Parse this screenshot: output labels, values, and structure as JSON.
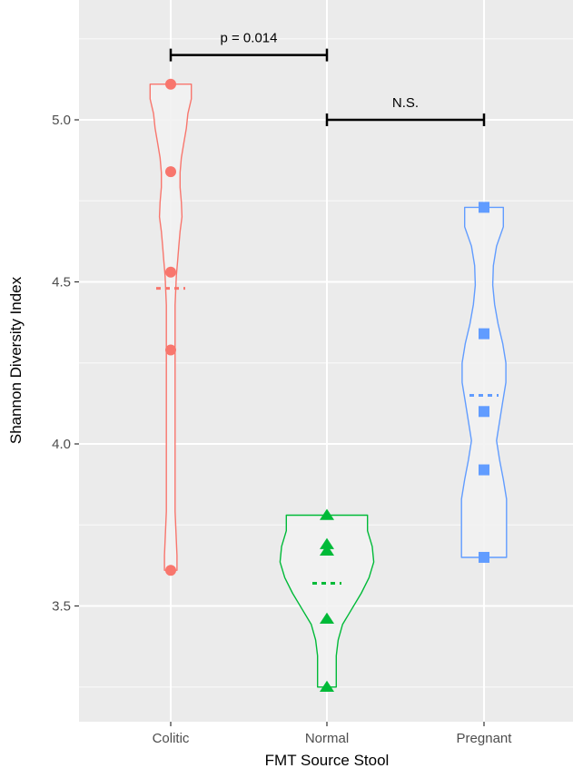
{
  "chart_data": {
    "type": "violin",
    "title": "",
    "xlabel": "FMT Source Stool",
    "ylabel": "Shannon Diversity Index",
    "ylim": [
      3.2,
      5.33
    ],
    "yticks": [
      "3.5",
      "4.0",
      "4.5",
      "5.0"
    ],
    "ytick_values": [
      3.5,
      4.0,
      4.5,
      5.0
    ],
    "grid": true,
    "background": "#ebebeb",
    "categories": [
      "Colitic",
      "Normal",
      "Pregnant"
    ],
    "series": [
      {
        "category": "Colitic",
        "color": "#f8766d",
        "marker": "circle",
        "points": [
          5.11,
          4.84,
          4.53,
          4.29,
          3.61
        ],
        "mean": 4.48,
        "min": 3.61,
        "max": 5.11,
        "density_widths": [
          0.66,
          0.66,
          0.55,
          0.5,
          0.42,
          0.34,
          0.3,
          0.3,
          0.34,
          0.36,
          0.3,
          0.26,
          0.22,
          0.18,
          0.16,
          0.14,
          0.14,
          0.14,
          0.14,
          0.14,
          0.14,
          0.14,
          0.14,
          0.14,
          0.14,
          0.14,
          0.14,
          0.14,
          0.14,
          0.14,
          0.16,
          0.18,
          0.2,
          0.2
        ]
      },
      {
        "category": "Normal",
        "color": "#00ba38",
        "marker": "triangle",
        "points": [
          3.78,
          3.69,
          3.67,
          3.46,
          3.25
        ],
        "mean": 3.57,
        "min": 3.25,
        "max": 3.78,
        "density_widths": [
          1.3,
          1.3,
          1.45,
          1.5,
          1.35,
          1.1,
          0.8,
          0.5,
          0.36,
          0.3,
          0.3,
          0.3
        ]
      },
      {
        "category": "Pregnant",
        "color": "#619cff",
        "marker": "square",
        "points": [
          4.73,
          4.34,
          4.1,
          3.92,
          3.65
        ],
        "mean": 4.15,
        "min": 3.65,
        "max": 4.73,
        "density_widths": [
          0.62,
          0.62,
          0.4,
          0.3,
          0.28,
          0.34,
          0.45,
          0.6,
          0.7,
          0.7,
          0.6,
          0.5,
          0.4,
          0.5,
          0.62,
          0.72,
          0.72,
          0.72,
          0.72
        ]
      }
    ],
    "annotations": [
      {
        "label": "p = 0.014",
        "from": "Colitic",
        "to": "Normal",
        "y": 5.2
      },
      {
        "label": "N.S.",
        "from": "Normal",
        "to": "Pregnant",
        "y": 5.0
      }
    ]
  }
}
